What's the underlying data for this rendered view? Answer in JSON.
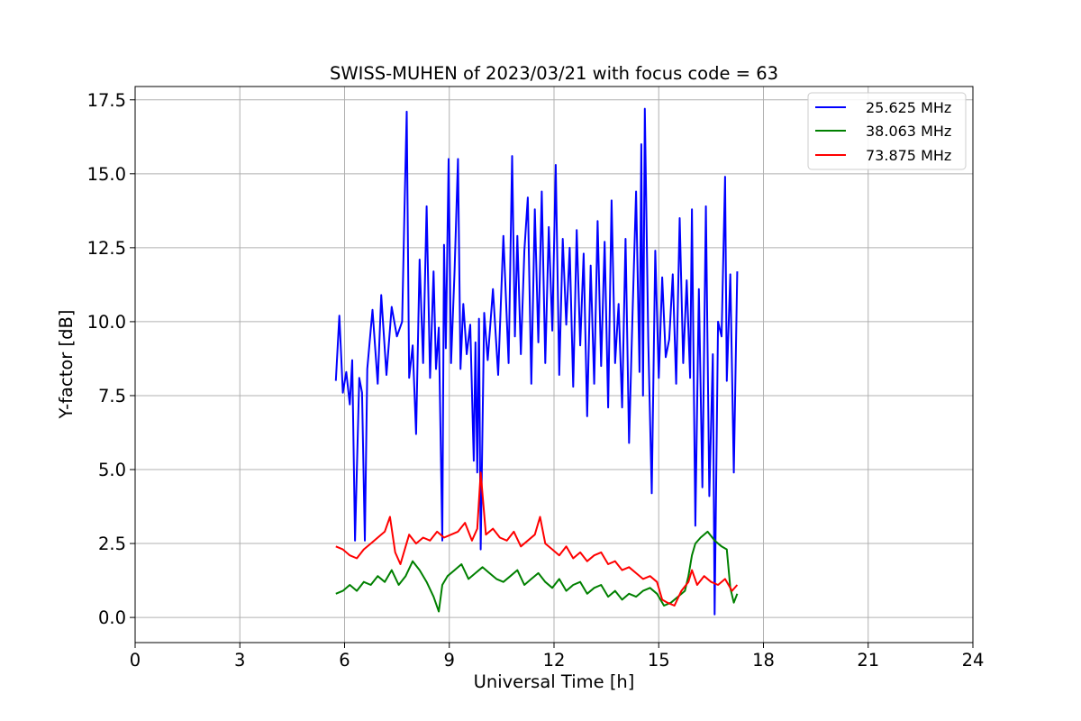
{
  "chart_data": {
    "type": "line",
    "title": "SWISS-MUHEN of 2023/03/21 with focus code = 63",
    "xlabel": "Universal Time [h]",
    "ylabel": "Y-factor [dB]",
    "xlim": [
      0,
      24
    ],
    "ylim": [
      -0.85,
      17.95
    ],
    "xticks": [
      0,
      3,
      6,
      9,
      12,
      15,
      18,
      21,
      24
    ],
    "xtick_labels": [
      "0",
      "3",
      "6",
      "9",
      "12",
      "15",
      "18",
      "21",
      "24"
    ],
    "yticks": [
      0,
      2.5,
      5,
      7.5,
      10,
      12.5,
      15,
      17.5
    ],
    "ytick_labels": [
      "0.0",
      "2.5",
      "5.0",
      "7.5",
      "10.0",
      "12.5",
      "15.0",
      "17.5"
    ],
    "grid": true,
    "legend_position": "top-right",
    "series": [
      {
        "name": "25.625 MHz",
        "color": "#0000ff",
        "x": [
          5.75,
          5.85,
          5.95,
          6.05,
          6.15,
          6.22,
          6.3,
          6.42,
          6.5,
          6.58,
          6.65,
          6.8,
          6.95,
          7.05,
          7.2,
          7.35,
          7.5,
          7.65,
          7.72,
          7.78,
          7.85,
          7.95,
          8.05,
          8.15,
          8.25,
          8.35,
          8.45,
          8.55,
          8.62,
          8.7,
          8.8,
          8.85,
          8.9,
          8.98,
          9.05,
          9.15,
          9.25,
          9.32,
          9.4,
          9.5,
          9.6,
          9.7,
          9.75,
          9.8,
          9.85,
          9.9,
          10.0,
          10.1,
          10.25,
          10.4,
          10.55,
          10.7,
          10.8,
          10.88,
          10.95,
          11.05,
          11.15,
          11.25,
          11.35,
          11.45,
          11.55,
          11.65,
          11.75,
          11.85,
          11.95,
          12.05,
          12.15,
          12.25,
          12.35,
          12.45,
          12.55,
          12.65,
          12.75,
          12.85,
          12.95,
          13.05,
          13.15,
          13.25,
          13.35,
          13.45,
          13.55,
          13.65,
          13.75,
          13.85,
          13.95,
          14.05,
          14.15,
          14.25,
          14.35,
          14.45,
          14.5,
          14.55,
          14.6,
          14.7,
          14.8,
          14.9,
          15.0,
          15.1,
          15.2,
          15.3,
          15.4,
          15.5,
          15.6,
          15.7,
          15.8,
          15.9,
          15.95,
          16.05,
          16.15,
          16.25,
          16.35,
          16.45,
          16.55,
          16.6,
          16.7,
          16.8,
          16.9,
          16.95,
          17.05,
          17.15,
          17.25
        ],
        "y": [
          8.0,
          10.2,
          7.6,
          8.3,
          7.2,
          8.7,
          2.6,
          8.1,
          7.6,
          2.6,
          8.4,
          10.4,
          7.9,
          10.9,
          8.2,
          10.5,
          9.5,
          10.0,
          13.9,
          17.1,
          8.1,
          9.2,
          6.2,
          12.1,
          8.6,
          13.9,
          8.1,
          11.7,
          8.4,
          9.8,
          2.6,
          12.6,
          9.1,
          15.5,
          8.6,
          11.7,
          15.5,
          8.4,
          10.6,
          8.9,
          9.9,
          5.3,
          9.3,
          4.9,
          10.1,
          2.3,
          10.3,
          8.7,
          11.1,
          8.2,
          12.9,
          8.6,
          15.6,
          9.5,
          12.9,
          8.9,
          12.4,
          14.2,
          7.9,
          13.8,
          9.3,
          14.4,
          8.6,
          13.2,
          9.7,
          15.3,
          8.2,
          12.8,
          9.9,
          12.5,
          7.8,
          13.1,
          9.2,
          12.3,
          6.8,
          11.9,
          7.9,
          13.4,
          8.5,
          12.7,
          7.1,
          14.1,
          8.6,
          10.6,
          7.1,
          12.8,
          5.9,
          10.3,
          14.4,
          8.3,
          16.0,
          7.5,
          17.2,
          9.4,
          4.2,
          12.4,
          8.1,
          11.5,
          8.8,
          9.4,
          11.6,
          7.9,
          13.5,
          8.6,
          11.4,
          8.1,
          13.8,
          3.1,
          11.1,
          4.4,
          13.9,
          4.1,
          8.9,
          0.1,
          10.0,
          9.5,
          14.9,
          8.0,
          11.6,
          4.9,
          11.7
        ]
      },
      {
        "name": "38.063 MHz",
        "color": "#008000",
        "x": [
          5.75,
          5.95,
          6.15,
          6.35,
          6.55,
          6.75,
          6.95,
          7.15,
          7.35,
          7.55,
          7.75,
          7.95,
          8.15,
          8.35,
          8.55,
          8.7,
          8.8,
          8.95,
          9.15,
          9.35,
          9.55,
          9.75,
          9.95,
          10.15,
          10.35,
          10.55,
          10.75,
          10.95,
          11.15,
          11.35,
          11.55,
          11.75,
          11.95,
          12.15,
          12.35,
          12.55,
          12.75,
          12.95,
          13.15,
          13.35,
          13.55,
          13.75,
          13.95,
          14.15,
          14.35,
          14.55,
          14.75,
          14.95,
          15.15,
          15.35,
          15.55,
          15.75,
          15.85,
          15.95,
          16.05,
          16.2,
          16.4,
          16.6,
          16.8,
          16.95,
          17.05,
          17.15,
          17.25
        ],
        "y": [
          0.8,
          0.9,
          1.1,
          0.9,
          1.2,
          1.1,
          1.4,
          1.2,
          1.6,
          1.1,
          1.4,
          1.9,
          1.6,
          1.2,
          0.7,
          0.2,
          1.1,
          1.4,
          1.6,
          1.8,
          1.3,
          1.5,
          1.7,
          1.5,
          1.3,
          1.2,
          1.4,
          1.6,
          1.1,
          1.3,
          1.5,
          1.2,
          1.0,
          1.3,
          0.9,
          1.1,
          1.2,
          0.8,
          1.0,
          1.1,
          0.7,
          0.9,
          0.6,
          0.8,
          0.7,
          0.9,
          1.0,
          0.8,
          0.4,
          0.5,
          0.7,
          0.9,
          1.4,
          2.1,
          2.5,
          2.7,
          2.9,
          2.6,
          2.4,
          2.3,
          1.0,
          0.5,
          0.8
        ]
      },
      {
        "name": "73.875 MHz",
        "color": "#ff0000",
        "x": [
          5.75,
          5.95,
          6.15,
          6.35,
          6.55,
          6.75,
          6.95,
          7.15,
          7.3,
          7.45,
          7.6,
          7.75,
          7.85,
          8.05,
          8.25,
          8.45,
          8.65,
          8.85,
          9.05,
          9.25,
          9.45,
          9.65,
          9.8,
          9.9,
          10.05,
          10.25,
          10.45,
          10.65,
          10.85,
          11.05,
          11.25,
          11.45,
          11.6,
          11.75,
          11.95,
          12.15,
          12.35,
          12.55,
          12.75,
          12.95,
          13.15,
          13.35,
          13.55,
          13.75,
          13.95,
          14.15,
          14.35,
          14.55,
          14.75,
          14.95,
          15.1,
          15.25,
          15.45,
          15.65,
          15.85,
          15.95,
          16.1,
          16.3,
          16.5,
          16.7,
          16.9,
          17.1,
          17.25
        ],
        "y": [
          2.4,
          2.3,
          2.1,
          2.0,
          2.3,
          2.5,
          2.7,
          2.9,
          3.4,
          2.2,
          1.8,
          2.4,
          2.8,
          2.5,
          2.7,
          2.6,
          2.9,
          2.7,
          2.8,
          2.9,
          3.2,
          2.6,
          3.0,
          4.9,
          2.8,
          3.0,
          2.7,
          2.6,
          2.9,
          2.4,
          2.6,
          2.8,
          3.4,
          2.5,
          2.3,
          2.1,
          2.4,
          2.0,
          2.2,
          1.9,
          2.1,
          2.2,
          1.8,
          1.9,
          1.6,
          1.7,
          1.5,
          1.3,
          1.4,
          1.2,
          0.6,
          0.5,
          0.4,
          0.9,
          1.2,
          1.6,
          1.1,
          1.4,
          1.2,
          1.1,
          1.3,
          0.9,
          1.1
        ]
      }
    ]
  }
}
